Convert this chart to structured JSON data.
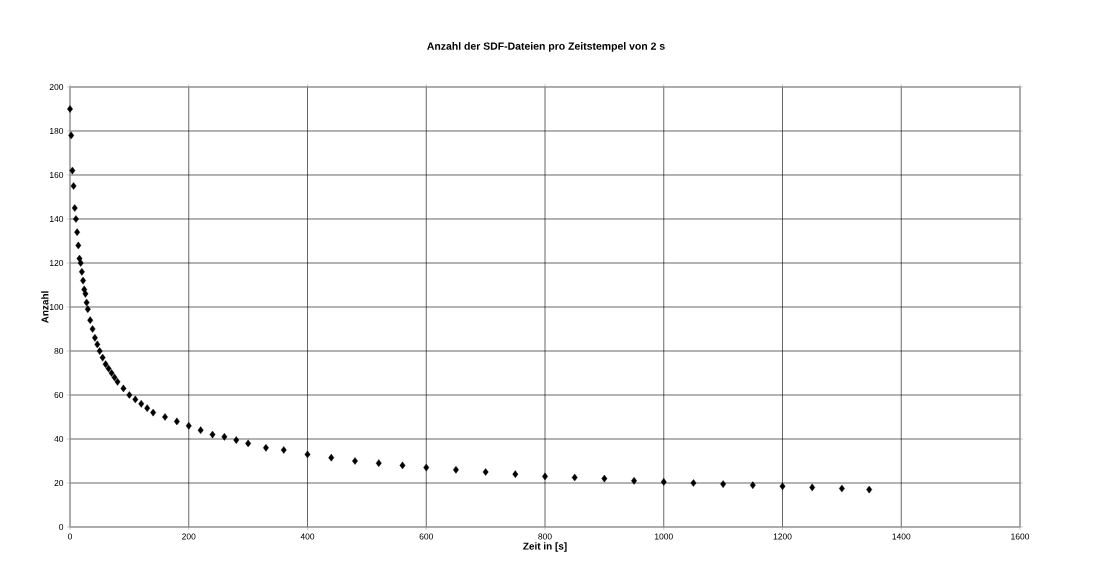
{
  "chart_data": {
    "type": "scatter",
    "title": "Anzahl der SDF-Dateien pro Zeitstempel von 2 s",
    "xlabel": "Zeit in [s]",
    "ylabel": "Anzahl",
    "xlim": [
      0,
      1600
    ],
    "xticks": [
      0,
      200,
      400,
      600,
      800,
      1000,
      1200,
      1400,
      1600
    ],
    "ylim": [
      0,
      200
    ],
    "yticks": [
      0,
      20,
      40,
      60,
      80,
      100,
      120,
      140,
      160,
      180,
      200
    ],
    "grid": true,
    "marker": "diamond",
    "series": [
      {
        "color": "#000000",
        "x": [
          0,
          2,
          4,
          6,
          8,
          10,
          12,
          14,
          16,
          18,
          20,
          22,
          24,
          26,
          28,
          30,
          34,
          38,
          42,
          46,
          50,
          55,
          60,
          65,
          70,
          75,
          80,
          90,
          100,
          110,
          120,
          130,
          140,
          160,
          180,
          200,
          220,
          240,
          260,
          280,
          300,
          330,
          360,
          400,
          440,
          480,
          520,
          560,
          600,
          650,
          700,
          750,
          800,
          850,
          900,
          950,
          1000,
          1050,
          1100,
          1150,
          1200,
          1250,
          1300,
          1346
        ],
        "values": [
          190,
          178,
          162,
          155,
          145,
          140,
          134,
          128,
          122,
          120,
          116,
          112,
          108,
          106,
          102,
          99,
          94,
          90,
          86,
          83,
          80,
          77,
          74,
          72,
          70,
          68,
          66,
          63,
          60,
          58,
          56,
          54,
          52,
          50,
          48,
          46,
          44,
          42,
          41,
          39.5,
          38,
          36,
          35,
          33,
          31.5,
          30,
          29,
          28,
          27,
          26,
          25,
          24,
          23,
          22.5,
          22,
          21,
          20.5,
          20,
          19.5,
          19,
          18.5,
          18,
          17.5,
          17
        ]
      }
    ]
  }
}
